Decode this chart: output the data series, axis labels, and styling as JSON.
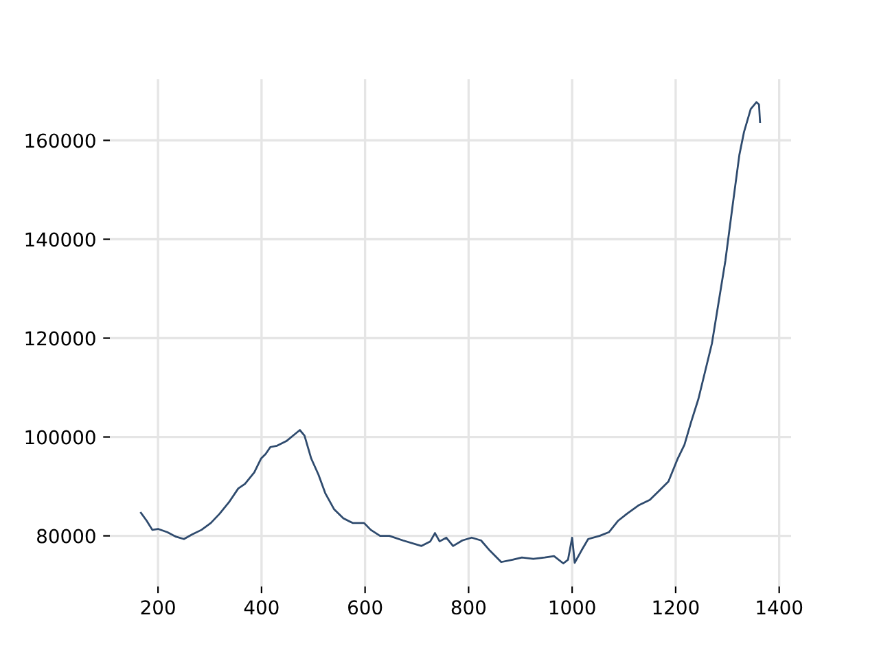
{
  "chart_data": {
    "type": "line",
    "x": [
      167,
      178,
      189,
      200,
      218,
      235,
      250,
      266,
      284,
      302,
      319,
      337,
      355,
      368,
      386,
      399,
      408,
      417,
      430,
      448,
      461,
      474,
      483,
      496,
      510,
      523,
      540,
      558,
      576,
      598,
      611,
      629,
      647,
      673,
      709,
      726,
      735,
      744,
      757,
      770,
      788,
      806,
      824,
      841,
      863,
      885,
      903,
      925,
      947,
      965,
      983,
      992,
      1000,
      1005,
      1018,
      1031,
      1053,
      1071,
      1089,
      1106,
      1128,
      1150,
      1168,
      1186,
      1204,
      1217,
      1230,
      1244,
      1257,
      1270,
      1283,
      1296,
      1310,
      1323,
      1332,
      1345,
      1356,
      1361,
      1363
    ],
    "series": [
      {
        "color": "#2f4b6e",
        "values": [
          84650,
          83070,
          81210,
          81400,
          80740,
          79810,
          79350,
          80280,
          81210,
          82600,
          84470,
          86790,
          89580,
          90510,
          92840,
          95630,
          96560,
          97960,
          98230,
          99160,
          100280,
          101400,
          100280,
          95630,
          92370,
          88650,
          85400,
          83540,
          82600,
          82600,
          81210,
          80000,
          80000,
          79070,
          77950,
          78880,
          80560,
          78880,
          79630,
          77950,
          79070,
          79630,
          79070,
          77020,
          74700,
          75160,
          75630,
          75350,
          75630,
          75910,
          74420,
          75160,
          79630,
          74560,
          77020,
          79350,
          80000,
          80740,
          83070,
          84470,
          86140,
          87260,
          89120,
          90980,
          95630,
          98420,
          103070,
          107720,
          113300,
          118890,
          127260,
          135630,
          146800,
          157030,
          161680,
          166330,
          167730,
          167260,
          163730
        ]
      }
    ],
    "xlim": [
      107,
      1423
    ],
    "ylim": [
      69750,
      172400
    ],
    "xticks": [
      200,
      400,
      600,
      800,
      1000,
      1200,
      1400
    ],
    "yticks": [
      80000,
      100000,
      120000,
      140000,
      160000
    ],
    "grid": true,
    "legend": false,
    "marker": "none",
    "line_style": "solid"
  }
}
